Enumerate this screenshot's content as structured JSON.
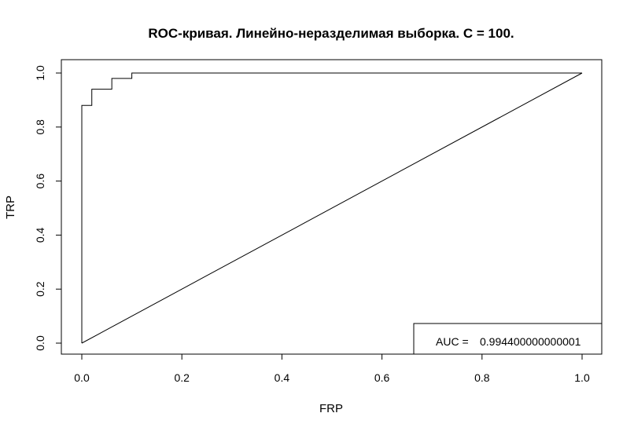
{
  "chart_data": {
    "type": "line",
    "title": "ROC-кривая. Линейно-неразделимая выборка. C = 100.",
    "xlabel": "FRP",
    "ylabel": "TRP",
    "xlim": [
      0,
      1
    ],
    "ylim": [
      0,
      1
    ],
    "x_ticks": [
      "0.0",
      "0.2",
      "0.4",
      "0.6",
      "0.8",
      "1.0"
    ],
    "y_ticks": [
      "0.0",
      "0.2",
      "0.4",
      "0.6",
      "0.8",
      "1.0"
    ],
    "grid": false,
    "legend_position": "bottom-right",
    "series": [
      {
        "kind": "roc-step",
        "x": [
          0,
          0,
          0.02,
          0.02,
          0.06,
          0.06,
          0.1,
          0.1,
          1.0
        ],
        "y": [
          0,
          0.88,
          0.88,
          0.94,
          0.94,
          0.98,
          0.98,
          1.0,
          1.0
        ]
      },
      {
        "kind": "diagonal",
        "x": [
          0,
          1
        ],
        "y": [
          0,
          1
        ]
      }
    ],
    "legend": {
      "label": "AUC = ",
      "value": "0.994400000000001"
    }
  }
}
